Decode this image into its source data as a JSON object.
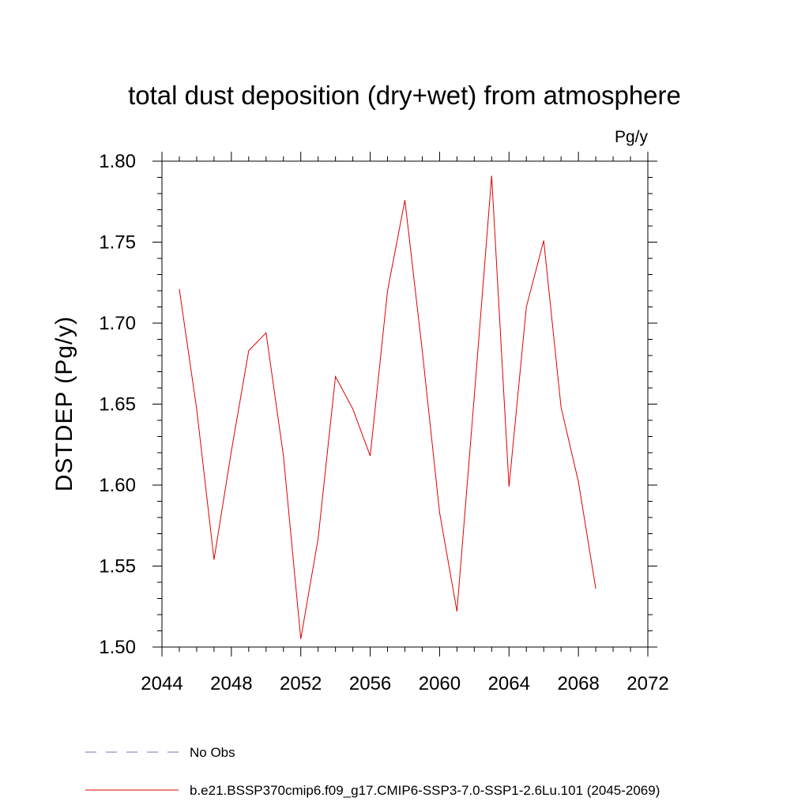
{
  "chart_data": {
    "type": "line",
    "title": "total dust deposition (dry+wet) from atmosphere",
    "units": "Pg/y",
    "ylabel": "DSTDEP  (Pg/y)",
    "xlabel": "",
    "xlim": [
      2044,
      2072
    ],
    "ylim": [
      1.5,
      1.8
    ],
    "x_ticks": [
      "2044",
      "2048",
      "2052",
      "2056",
      "2060",
      "2064",
      "2068",
      "2072"
    ],
    "y_ticks": [
      "1.50",
      "1.55",
      "1.60",
      "1.65",
      "1.70",
      "1.75",
      "1.80"
    ],
    "grid": false,
    "legend_placement": "bottom",
    "series": [
      {
        "name": "b.e21.BSSP370cmip6.f09_g17.CMIP6-SSP3-7.0-SSP1-2.6Lu.101 (2045-2069)",
        "color": "#e00000",
        "x": [
          2045,
          2046,
          2047,
          2048,
          2049,
          2050,
          2051,
          2052,
          2053,
          2054,
          2055,
          2056,
          2057,
          2058,
          2059,
          2060,
          2061,
          2062,
          2063,
          2064,
          2065,
          2066,
          2067,
          2068,
          2069
        ],
        "y": [
          1.721,
          1.647,
          1.554,
          1.621,
          1.683,
          1.694,
          1.618,
          1.505,
          1.567,
          1.667,
          1.647,
          1.618,
          1.72,
          1.776,
          1.683,
          1.583,
          1.522,
          1.655,
          1.791,
          1.599,
          1.71,
          1.751,
          1.648,
          1.602,
          1.536
        ]
      }
    ],
    "legend": [
      {
        "label": "No Obs",
        "color": "#7a6fb5",
        "dash": "dashed"
      },
      {
        "label": "b.e21.BSSP370cmip6.f09_g17.CMIP6-SSP3-7.0-SSP1-2.6Lu.101 (2045-2069)",
        "color": "#e00000",
        "dash": "solid"
      }
    ]
  }
}
